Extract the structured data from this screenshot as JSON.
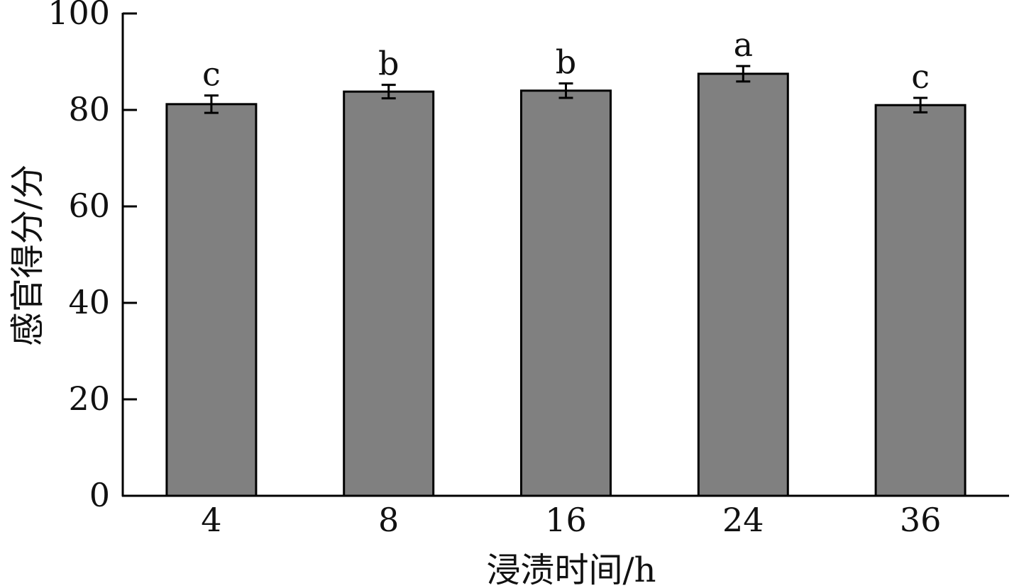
{
  "chart_data": {
    "type": "bar",
    "categories": [
      "4",
      "8",
      "16",
      "24",
      "36"
    ],
    "values": [
      81.2,
      83.8,
      84.0,
      87.5,
      81.0
    ],
    "errors": [
      1.8,
      1.4,
      1.5,
      1.6,
      1.5
    ],
    "significance": [
      "c",
      "b",
      "b",
      "a",
      "c"
    ],
    "xlabel": "浸渍时间/h",
    "ylabel": "感官得分/分",
    "ylim": [
      0,
      100
    ],
    "yticks": [
      0,
      20,
      40,
      60,
      80,
      100
    ],
    "grid": false,
    "bar_color": "#808080",
    "bar_edge_color": "#000000"
  }
}
